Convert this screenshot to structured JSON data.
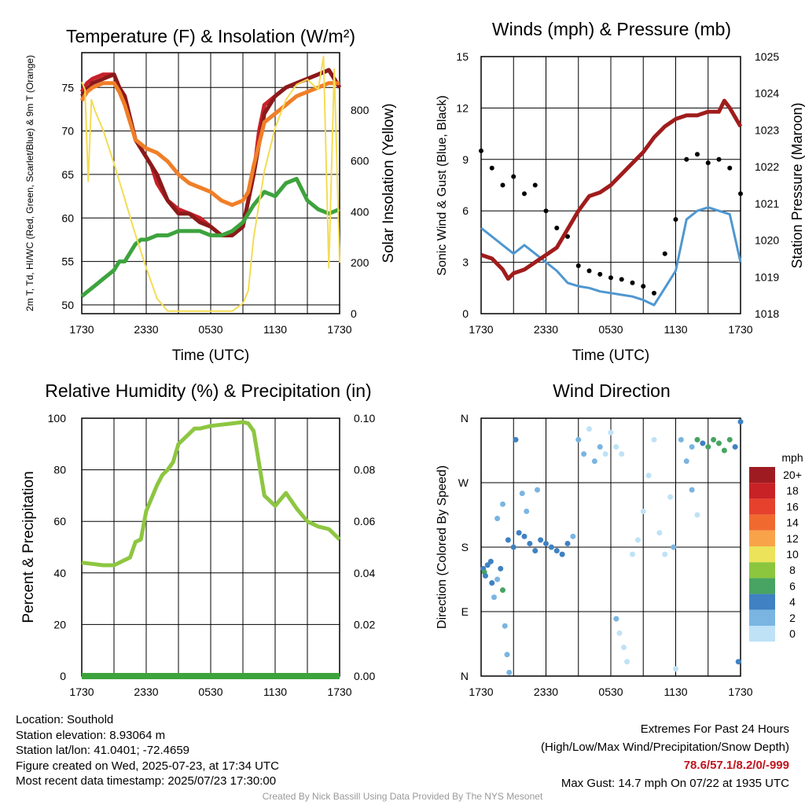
{
  "chart_data": [
    {
      "type": "line",
      "title": "Temperature (F) & Insolation (W/m²)",
      "xlabel": "Time (UTC)",
      "ylabel_left": "2m T, Td, HI/WC (Red, Green, Scarlet/Blue) & 9m T (Orange)",
      "ylabel_right": "Solar Insolation (Yellow)",
      "x_ticks": [
        "1730",
        "2330",
        "0530",
        "1130",
        "1730"
      ],
      "x_range_hours": [
        0,
        24
      ],
      "ylim_left": [
        49,
        79
      ],
      "yticks_left": [
        50,
        55,
        60,
        65,
        70,
        75
      ],
      "ylim_right": [
        0,
        1025
      ],
      "yticks_right": [
        0,
        200,
        400,
        600,
        800
      ],
      "series": [
        {
          "name": "2m T",
          "color": "#c8202a",
          "axis": "left",
          "x": [
            0,
            0.5,
            1,
            2,
            3,
            3.5,
            4,
            4.5,
            5,
            5.5,
            6,
            6.5,
            7,
            8,
            9,
            10,
            11,
            12,
            13,
            14,
            15,
            15.5,
            16,
            16.5,
            17,
            18,
            19,
            20,
            21,
            22,
            23,
            23.5,
            24
          ],
          "y": [
            74.5,
            75.5,
            76,
            76.5,
            76.5,
            75,
            74,
            71.5,
            69,
            68,
            67,
            66,
            64,
            62,
            61,
            60.5,
            60,
            59,
            58,
            58,
            59,
            62,
            65,
            70,
            73,
            74,
            75,
            75.5,
            76,
            76.5,
            77,
            76,
            75
          ]
        },
        {
          "name": "HI",
          "color": "#8b1a1a",
          "axis": "left",
          "x": [
            0,
            1,
            2,
            3,
            3.5,
            4,
            5,
            6,
            7,
            8,
            9,
            10,
            11,
            12,
            13,
            14,
            15,
            16,
            17,
            18,
            19,
            20,
            21,
            22,
            23,
            24
          ],
          "y": [
            74,
            75.5,
            76,
            76.5,
            75,
            74,
            69,
            67,
            65,
            62,
            60.5,
            60.5,
            59.5,
            59,
            58,
            58,
            59,
            65,
            72,
            74,
            75,
            75.5,
            76,
            76.5,
            77,
            75
          ]
        },
        {
          "name": "9m T",
          "color": "#f07f28",
          "axis": "left",
          "x": [
            0,
            0.5,
            1,
            2,
            3,
            3.5,
            4,
            4.5,
            5,
            6,
            7,
            8,
            9,
            10,
            11,
            12,
            13,
            14,
            15,
            15.5,
            16,
            17,
            18,
            19,
            20,
            21,
            22,
            23,
            24
          ],
          "y": [
            73.5,
            74.5,
            75,
            75.5,
            75.5,
            74.5,
            73,
            71,
            69,
            68,
            67.5,
            66.5,
            65,
            64,
            63.5,
            63,
            62,
            61.5,
            62,
            63,
            66,
            71,
            72,
            73,
            74,
            74.5,
            75,
            75.5,
            75.5
          ]
        },
        {
          "name": "Td",
          "color": "#3da33d",
          "axis": "left",
          "x": [
            0,
            0.5,
            1,
            1.5,
            2,
            2.5,
            3,
            3.5,
            4,
            4.5,
            5,
            5.5,
            6,
            7,
            8,
            9,
            10,
            11,
            12,
            13,
            14,
            15,
            16,
            17,
            18,
            19,
            20,
            21,
            22,
            23,
            24
          ],
          "y": [
            51,
            51.5,
            52,
            52.5,
            53,
            53.5,
            54,
            55,
            55,
            56,
            57,
            57.5,
            57.5,
            58,
            58,
            58.5,
            58.5,
            58.5,
            58,
            58,
            58.5,
            59.5,
            61.5,
            63,
            62.5,
            64,
            64.5,
            62,
            61,
            60.5,
            61
          ]
        },
        {
          "name": "Solar",
          "color": "#f3dc55",
          "axis": "right",
          "x": [
            0,
            0.3,
            0.6,
            0.9,
            1.2,
            1.5,
            2,
            3,
            4,
            5,
            6,
            7,
            8,
            9,
            10,
            11,
            12,
            13,
            14,
            15,
            15.5,
            16,
            17,
            18,
            19,
            20,
            21,
            22,
            22.5,
            23,
            23.5,
            24
          ],
          "y": [
            910,
            880,
            520,
            840,
            800,
            770,
            720,
            590,
            450,
            310,
            180,
            60,
            10,
            10,
            10,
            10,
            10,
            10,
            10,
            40,
            90,
            300,
            560,
            730,
            840,
            900,
            920,
            880,
            1010,
            180,
            960,
            200
          ]
        }
      ]
    },
    {
      "type": "line",
      "title": "Winds (mph) & Pressure (mb)",
      "xlabel": "Time (UTC)",
      "ylabel_left": "Sonic Wind & Gust (Blue, Black)",
      "ylabel_right": "Station Pressure (Maroon)",
      "x_ticks": [
        "1730",
        "2330",
        "0530",
        "1130",
        "1730"
      ],
      "x_range_hours": [
        0,
        24
      ],
      "ylim_left": [
        0,
        15
      ],
      "yticks_left": [
        0,
        3,
        6,
        9,
        12,
        15
      ],
      "ylim_right": [
        1018,
        1025
      ],
      "yticks_right": [
        1018,
        1019,
        1020,
        1021,
        1022,
        1023,
        1024,
        1025
      ],
      "series": [
        {
          "name": "Sonic Wind",
          "color": "#4f97d0",
          "axis": "left",
          "x": [
            0,
            1,
            2,
            3,
            4,
            5,
            6,
            7,
            8,
            9,
            10,
            11,
            12,
            13,
            14,
            15,
            16,
            17,
            18,
            19,
            20,
            21,
            22,
            23,
            24
          ],
          "y": [
            5,
            4.5,
            4,
            3.5,
            4,
            3.5,
            3,
            2.5,
            1.8,
            1.6,
            1.5,
            1.3,
            1.2,
            1.1,
            1.0,
            0.8,
            0.5,
            1.5,
            2.5,
            5.5,
            6,
            6.2,
            6,
            5.8,
            3
          ]
        },
        {
          "name": "Gust",
          "color": "#000000",
          "axis": "left",
          "style": "points",
          "x": [
            0,
            1,
            2,
            3,
            4,
            5,
            6,
            7,
            8,
            9,
            10,
            11,
            12,
            13,
            14,
            15,
            16,
            17,
            18,
            19,
            20,
            21,
            22,
            23,
            24
          ],
          "y": [
            9.5,
            8.5,
            7.5,
            8,
            7,
            7.5,
            6,
            5,
            4.5,
            2.8,
            2.5,
            2.3,
            2.1,
            2,
            1.8,
            1.6,
            1.2,
            3.5,
            5.5,
            9,
            9.3,
            8.8,
            9,
            8.5,
            7
          ]
        },
        {
          "name": "Pressure",
          "color": "#a01c1c",
          "axis": "right",
          "x": [
            0,
            1,
            2,
            2.5,
            3,
            4,
            5,
            6,
            7,
            8,
            9,
            10,
            11,
            12,
            13,
            14,
            15,
            16,
            17,
            18,
            19,
            20,
            21,
            22,
            22.5,
            23,
            24
          ],
          "y": [
            1019.6,
            1019.5,
            1019.2,
            1018.95,
            1019.1,
            1019.2,
            1019.4,
            1019.6,
            1019.8,
            1020.3,
            1020.8,
            1021.2,
            1021.3,
            1021.5,
            1021.8,
            1022.1,
            1022.4,
            1022.8,
            1023.1,
            1023.3,
            1023.4,
            1023.4,
            1023.5,
            1023.5,
            1023.8,
            1023.6,
            1023.1
          ]
        }
      ]
    },
    {
      "type": "line",
      "title": "Relative Humidity (%) & Precipitation (in)",
      "xlabel": "",
      "ylabel_left": "Percent & Precipitation",
      "x_ticks": [
        "1730",
        "2330",
        "0530",
        "1130",
        "1730"
      ],
      "x_range_hours": [
        0,
        24
      ],
      "ylim_left": [
        0,
        100
      ],
      "yticks_left": [
        0,
        20,
        40,
        60,
        80,
        100
      ],
      "ylim_right": [
        0,
        0.1
      ],
      "yticks_right": [
        "0.00",
        "0.02",
        "0.04",
        "0.06",
        "0.08",
        "0.10"
      ],
      "series": [
        {
          "name": "RH",
          "color": "#8dc641",
          "axis": "left",
          "x": [
            0,
            1,
            2,
            3,
            4,
            4.5,
            5,
            5.5,
            6,
            7,
            7.5,
            8,
            8.5,
            9,
            10,
            10.5,
            11,
            12,
            13,
            14,
            15,
            15.5,
            16,
            17,
            18,
            19,
            20,
            21,
            22,
            23,
            24
          ],
          "y": [
            44,
            43.5,
            43,
            43,
            45,
            46,
            52,
            53,
            64,
            74,
            78,
            80,
            83,
            90,
            94,
            96,
            96,
            97,
            97.5,
            98,
            98.5,
            98,
            95,
            70,
            66,
            71,
            65,
            60,
            58,
            57,
            53
          ]
        },
        {
          "name": "Precipitation",
          "color": "#3da33d",
          "axis": "right",
          "x": [
            0,
            24
          ],
          "y": [
            0,
            0
          ]
        }
      ]
    },
    {
      "type": "scatter",
      "title": "Wind Direction",
      "ylabel_left": "Direction (Colored By Speed)",
      "x_ticks": [
        "1730",
        "2330",
        "0530",
        "1130",
        "1730"
      ],
      "x_range_hours": [
        0,
        24
      ],
      "yticks_left": [
        "N",
        "E",
        "S",
        "W",
        "N"
      ],
      "ylim_deg": [
        0,
        360
      ],
      "legend_title": "mph",
      "legend_labels": [
        "20+",
        "18",
        "16",
        "14",
        "12",
        "10",
        "8",
        "6",
        "4",
        "2",
        "0"
      ],
      "legend_colors": [
        "#9e1c21",
        "#c82126",
        "#e5412d",
        "#f06a30",
        "#f8a34a",
        "#ece35b",
        "#8cc63f",
        "#47a462",
        "#3f81c2",
        "#7ab5e1",
        "#bfe2f7"
      ],
      "points": [
        {
          "x": 0.2,
          "d": 150,
          "s": 4
        },
        {
          "x": 0.3,
          "d": 145,
          "s": 6
        },
        {
          "x": 0.4,
          "d": 140,
          "s": 4
        },
        {
          "x": 0.6,
          "d": 155,
          "s": 4
        },
        {
          "x": 0.9,
          "d": 160,
          "s": 4
        },
        {
          "x": 1.0,
          "d": 130,
          "s": 4
        },
        {
          "x": 1.2,
          "d": 110,
          "s": 2
        },
        {
          "x": 1.5,
          "d": 135,
          "s": 2
        },
        {
          "x": 1.8,
          "d": 150,
          "s": 4
        },
        {
          "x": 2.0,
          "d": 120,
          "s": 6
        },
        {
          "x": 2.2,
          "d": 70,
          "s": 2
        },
        {
          "x": 2.4,
          "d": 30,
          "s": 2
        },
        {
          "x": 2.6,
          "d": 5,
          "s": 2
        },
        {
          "x": 1.5,
          "d": 220,
          "s": 2
        },
        {
          "x": 2.0,
          "d": 240,
          "s": 2
        },
        {
          "x": 2.5,
          "d": 190,
          "s": 4
        },
        {
          "x": 3.0,
          "d": 180,
          "s": 4
        },
        {
          "x": 3.5,
          "d": 200,
          "s": 4
        },
        {
          "x": 4.0,
          "d": 195,
          "s": 4
        },
        {
          "x": 4.5,
          "d": 185,
          "s": 4
        },
        {
          "x": 5.0,
          "d": 175,
          "s": 4
        },
        {
          "x": 5.5,
          "d": 190,
          "s": 4
        },
        {
          "x": 6.0,
          "d": 185,
          "s": 4
        },
        {
          "x": 6.5,
          "d": 180,
          "s": 4
        },
        {
          "x": 7.0,
          "d": 175,
          "s": 4
        },
        {
          "x": 7.5,
          "d": 170,
          "s": 4
        },
        {
          "x": 8.0,
          "d": 185,
          "s": 4
        },
        {
          "x": 8.5,
          "d": 195,
          "s": 2
        },
        {
          "x": 4.2,
          "d": 230,
          "s": 2
        },
        {
          "x": 5.2,
          "d": 260,
          "s": 2
        },
        {
          "x": 3.2,
          "d": 330,
          "s": 4
        },
        {
          "x": 3.8,
          "d": 255,
          "s": 2
        },
        {
          "x": 9.0,
          "d": 330,
          "s": 2
        },
        {
          "x": 9.5,
          "d": 310,
          "s": 2
        },
        {
          "x": 10.0,
          "d": 345,
          "s": 0
        },
        {
          "x": 10.5,
          "d": 300,
          "s": 2
        },
        {
          "x": 11.0,
          "d": 320,
          "s": 2
        },
        {
          "x": 11.5,
          "d": 310,
          "s": 0
        },
        {
          "x": 12.0,
          "d": 340,
          "s": 0
        },
        {
          "x": 12.5,
          "d": 320,
          "s": 0
        },
        {
          "x": 13.0,
          "d": 310,
          "s": 0
        },
        {
          "x": 12.5,
          "d": 80,
          "s": 2
        },
        {
          "x": 12.8,
          "d": 60,
          "s": 0
        },
        {
          "x": 13.2,
          "d": 40,
          "s": 0
        },
        {
          "x": 13.5,
          "d": 20,
          "s": 0
        },
        {
          "x": 14.0,
          "d": 170,
          "s": 0
        },
        {
          "x": 14.5,
          "d": 190,
          "s": 0
        },
        {
          "x": 15.0,
          "d": 230,
          "s": 0
        },
        {
          "x": 15.5,
          "d": 280,
          "s": 0
        },
        {
          "x": 16.0,
          "d": 330,
          "s": 0
        },
        {
          "x": 16.5,
          "d": 200,
          "s": 0
        },
        {
          "x": 17.0,
          "d": 170,
          "s": 0
        },
        {
          "x": 17.5,
          "d": 250,
          "s": 0
        },
        {
          "x": 17.8,
          "d": 180,
          "s": 2
        },
        {
          "x": 18.0,
          "d": 10,
          "s": 0
        },
        {
          "x": 18.5,
          "d": 330,
          "s": 2
        },
        {
          "x": 19.0,
          "d": 300,
          "s": 2
        },
        {
          "x": 19.5,
          "d": 320,
          "s": 2
        },
        {
          "x": 20.0,
          "d": 330,
          "s": 6
        },
        {
          "x": 20.5,
          "d": 325,
          "s": 4
        },
        {
          "x": 21.0,
          "d": 320,
          "s": 6
        },
        {
          "x": 21.5,
          "d": 330,
          "s": 6
        },
        {
          "x": 22.0,
          "d": 325,
          "s": 6
        },
        {
          "x": 22.5,
          "d": 315,
          "s": 6
        },
        {
          "x": 23.0,
          "d": 330,
          "s": 6
        },
        {
          "x": 23.5,
          "d": 320,
          "s": 4
        },
        {
          "x": 23.8,
          "d": 20,
          "s": 4
        },
        {
          "x": 24.0,
          "d": 355,
          "s": 4
        },
        {
          "x": 19.5,
          "d": 260,
          "s": 2
        },
        {
          "x": 20.0,
          "d": 225,
          "s": 0
        }
      ]
    }
  ],
  "footer": {
    "location": "Location: Southold",
    "elevation": "Station elevation: 8.93064 m",
    "latlon": "Station lat/lon: 41.0401; -72.4659",
    "created": "Figure created on Wed, 2025-07-23, at 17:34 UTC",
    "recent": "Most recent data timestamp: 2025/07/23 17:30:00",
    "extremes_title": "Extremes For Past 24 Hours",
    "extremes_subtitle": "(High/Low/Max Wind/Precipitation/Snow Depth)",
    "extremes_values": "78.6/57.1/8.2/0/-999",
    "extremes_color": "#c0141e",
    "max_gust": "Max Gust: 14.7 mph On 07/22 at 1935 UTC",
    "credit": "Created By Nick Bassill Using Data Provided By The NYS Mesonet"
  }
}
